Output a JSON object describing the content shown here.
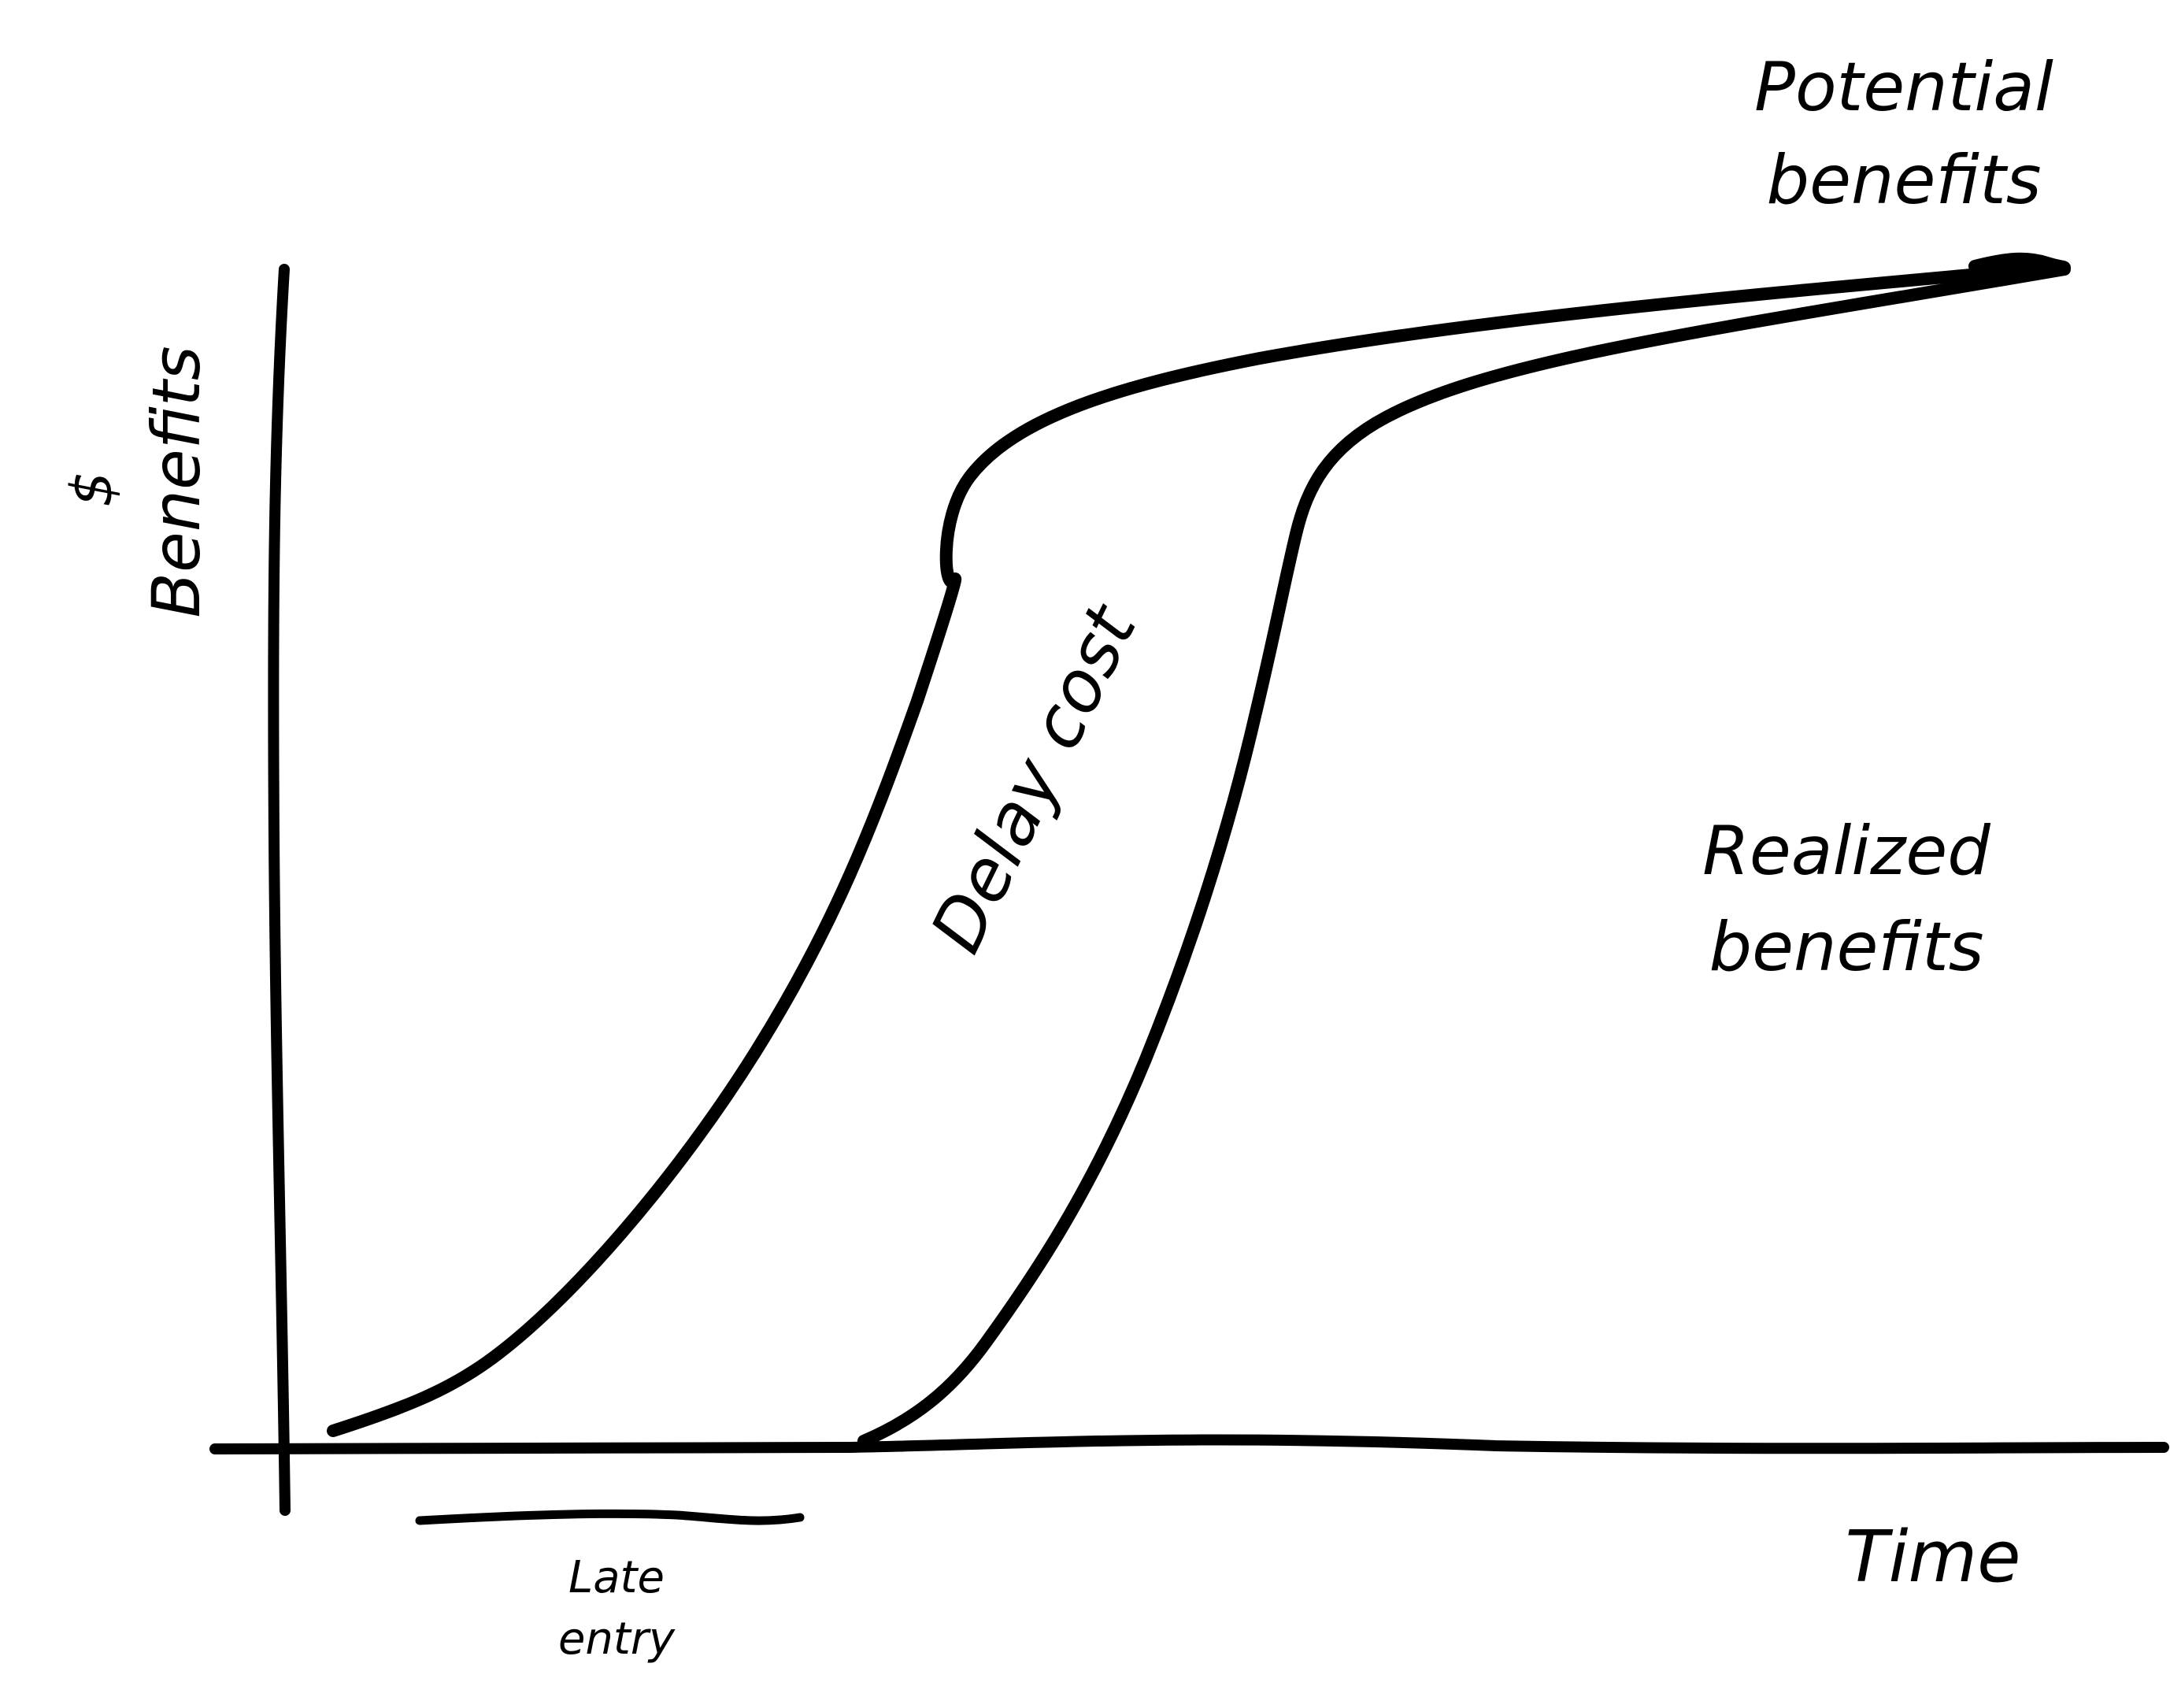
{
  "labels": {
    "y_axis_symbol": "$",
    "y_axis_title": "Benefits",
    "x_axis_title": "Time",
    "potential_line1": "Potential",
    "potential_line2": "benefits",
    "realized_line1": "Realized",
    "realized_line2": "benefits",
    "delay_cost": "Delay cost",
    "late_entry_line1": "Late",
    "late_entry_line2": "entry"
  },
  "curves": [
    {
      "name": "potential-benefits-curve"
    },
    {
      "name": "realized-benefits-curve"
    }
  ],
  "colors": {
    "ink": "#000000",
    "background": "#ffffff"
  }
}
